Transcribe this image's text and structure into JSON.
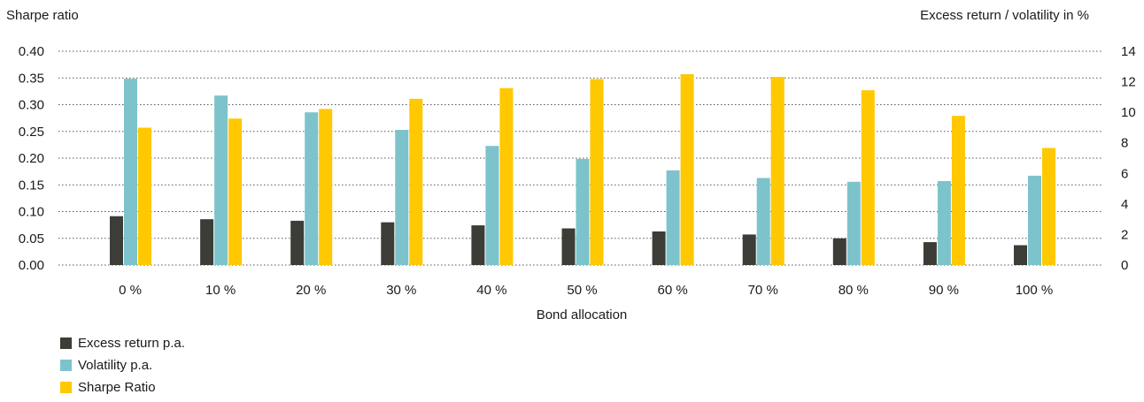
{
  "chart_data": {
    "type": "bar",
    "ylabel_left": "Sharpe ratio",
    "ylabel_right": "Excess return / volatility in %",
    "xlabel": "Bond allocation",
    "categories": [
      "0 %",
      "10 %",
      "20 %",
      "30 %",
      "40 %",
      "50 %",
      "60 %",
      "70 %",
      "80 %",
      "90 %",
      "100 %"
    ],
    "left_axis": {
      "min": 0,
      "max": 0.4,
      "ticks": [
        "0.00",
        "0.05",
        "0.10",
        "0.15",
        "0.20",
        "0.25",
        "0.30",
        "0.35",
        "0.40"
      ]
    },
    "right_axis": {
      "min": 0,
      "max": 14,
      "ticks": [
        "0",
        "2",
        "4",
        "6",
        "8",
        "10",
        "12",
        "14"
      ]
    },
    "grid": "dotted horizontal",
    "legend_position": "bottom-left",
    "series": [
      {
        "name": "Excess return p.a.",
        "axis": "right",
        "color": "#3b3d36",
        "values": [
          3.2,
          3.0,
          2.9,
          2.8,
          2.6,
          2.4,
          2.2,
          2.0,
          1.75,
          1.5,
          1.3
        ]
      },
      {
        "name": "Volatility p.a.",
        "axis": "right",
        "color": "#7dc3cc",
        "values": [
          12.2,
          11.1,
          10.0,
          8.85,
          7.8,
          6.95,
          6.2,
          5.7,
          5.45,
          5.5,
          5.85
        ]
      },
      {
        "name": "Sharpe Ratio",
        "axis": "left",
        "color": "#ffc800",
        "values": [
          0.257,
          0.274,
          0.292,
          0.311,
          0.331,
          0.348,
          0.357,
          0.352,
          0.327,
          0.279,
          0.219
        ]
      }
    ]
  }
}
